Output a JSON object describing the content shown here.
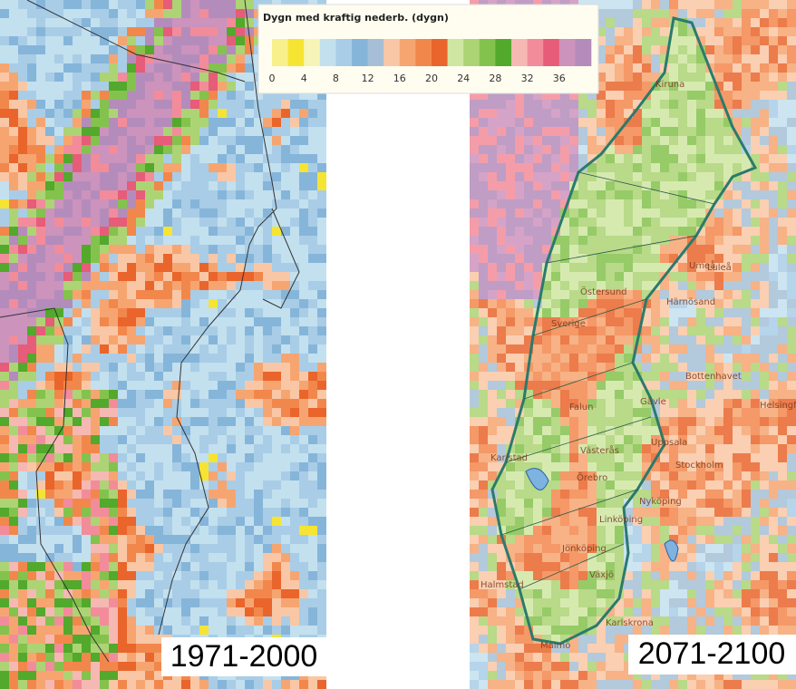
{
  "legend": {
    "title": "Dygn med kraftig nederb. (dygn)",
    "range": [
      0,
      40
    ],
    "ticks": [
      0,
      4,
      8,
      12,
      16,
      20,
      24,
      28,
      32,
      36
    ],
    "colors": [
      "#f8f08a",
      "#f6e433",
      "#f7f4b8",
      "#c3e0ef",
      "#a9cde6",
      "#86b5da",
      "#a6bfd6",
      "#f9c7a5",
      "#f6a571",
      "#f2874c",
      "#e9652c",
      "#cfe6a2",
      "#acd474",
      "#84c24e",
      "#52a92c",
      "#f6b8b3",
      "#f28c9a",
      "#e75c78",
      "#cc93bd",
      "#b48cbb"
    ]
  },
  "panels": [
    {
      "period": "1971-2000"
    },
    {
      "period": "2071-2100",
      "places": [
        "Kiruna",
        "Luleå",
        "Umeå",
        "Östersund",
        "Härnösand",
        "Sverige",
        "Bottenhavet",
        "Gävle",
        "Falun",
        "Västerås",
        "Uppsala",
        "Karlstad",
        "Örebro",
        "Stockholm",
        "Nyköping",
        "Linköping",
        "Jönköping",
        "Växjö",
        "Halmstad",
        "Karlskrona",
        "Malmö",
        "Helsingfors"
      ]
    }
  ]
}
